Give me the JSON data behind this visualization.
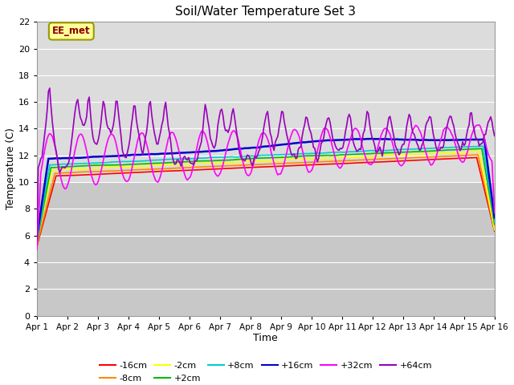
{
  "title": "Soil/Water Temperature Set 3",
  "xlabel": "Time",
  "ylabel": "Temperature (C)",
  "ylim": [
    0,
    22
  ],
  "yticks": [
    0,
    2,
    4,
    6,
    8,
    10,
    12,
    14,
    16,
    18,
    20,
    22
  ],
  "x_labels": [
    "Apr 1",
    "Apr 2",
    "Apr 3",
    "Apr 4",
    "Apr 5",
    "Apr 6",
    "Apr 7",
    "Apr 8",
    "Apr 9",
    "Apr 10",
    "Apr 11",
    "Apr 12",
    "Apr 13",
    "Apr 14",
    "Apr 15",
    "Apr 16"
  ],
  "num_days": 15,
  "series_order": [
    "-16cm",
    "-8cm",
    "-2cm",
    "+2cm",
    "+8cm",
    "+16cm",
    "+32cm",
    "+64cm"
  ],
  "colors": {
    "-16cm": "#ff0000",
    "-8cm": "#ff8800",
    "-2cm": "#ffff00",
    "+2cm": "#00bb00",
    "+8cm": "#00cccc",
    "+16cm": "#0000cc",
    "+32cm": "#ff00ff",
    "+64cm": "#9900bb"
  },
  "lws": {
    "-16cm": 1.2,
    "-8cm": 1.2,
    "-2cm": 1.2,
    "+2cm": 1.2,
    "+8cm": 1.2,
    "+16cm": 1.8,
    "+32cm": 1.2,
    "+64cm": 1.2
  },
  "station_label": "EE_met",
  "station_label_color": "#880000",
  "station_box_facecolor": "#ffff99",
  "station_box_edgecolor": "#999900",
  "upper_bg": "#dcdcdc",
  "lower_bg": "#c8c8c8",
  "grid_color": "#ffffff",
  "legend_ncol_row1": 6,
  "legend_ncol_row2": 2
}
